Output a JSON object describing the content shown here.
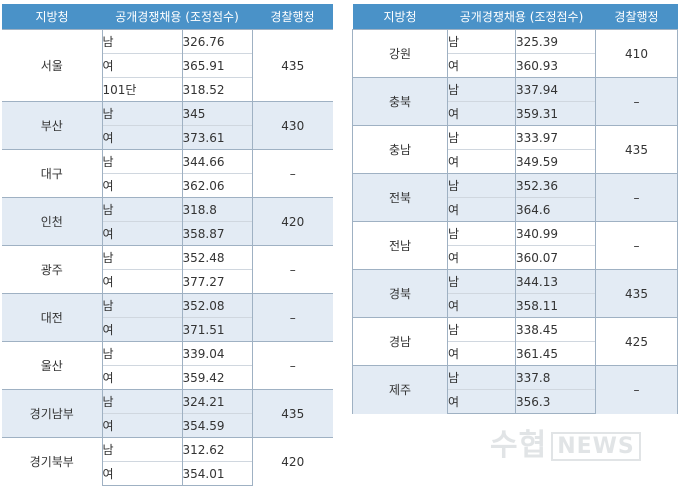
{
  "headers": {
    "region": "지방청",
    "open": "공개경쟁채용 (조정점수)",
    "admin": "경찰행정"
  },
  "left": [
    {
      "region": "서울",
      "admin": "435",
      "shaded": false,
      "rows": [
        {
          "gender": "남",
          "score": "326.76"
        },
        {
          "gender": "여",
          "score": "365.91"
        },
        {
          "gender": "101단",
          "score": "318.52"
        }
      ]
    },
    {
      "region": "부산",
      "admin": "430",
      "shaded": true,
      "rows": [
        {
          "gender": "남",
          "score": "345"
        },
        {
          "gender": "여",
          "score": "373.61"
        }
      ]
    },
    {
      "region": "대구",
      "admin": "–",
      "shaded": false,
      "rows": [
        {
          "gender": "남",
          "score": "344.66"
        },
        {
          "gender": "여",
          "score": "362.06"
        }
      ]
    },
    {
      "region": "인천",
      "admin": "420",
      "shaded": true,
      "rows": [
        {
          "gender": "남",
          "score": "318.8"
        },
        {
          "gender": "여",
          "score": "358.87"
        }
      ]
    },
    {
      "region": "광주",
      "admin": "–",
      "shaded": false,
      "rows": [
        {
          "gender": "남",
          "score": "352.48"
        },
        {
          "gender": "여",
          "score": "377.27"
        }
      ]
    },
    {
      "region": "대전",
      "admin": "–",
      "shaded": true,
      "rows": [
        {
          "gender": "남",
          "score": "352.08"
        },
        {
          "gender": "여",
          "score": "371.51"
        }
      ]
    },
    {
      "region": "울산",
      "admin": "–",
      "shaded": false,
      "rows": [
        {
          "gender": "남",
          "score": "339.04"
        },
        {
          "gender": "여",
          "score": "359.42"
        }
      ]
    },
    {
      "region": "경기남부",
      "admin": "435",
      "shaded": true,
      "rows": [
        {
          "gender": "남",
          "score": "324.21"
        },
        {
          "gender": "여",
          "score": "354.59"
        }
      ]
    },
    {
      "region": "경기북부",
      "admin": "420",
      "shaded": false,
      "rows": [
        {
          "gender": "남",
          "score": "312.62"
        },
        {
          "gender": "여",
          "score": "354.01"
        }
      ]
    }
  ],
  "right": [
    {
      "region": "강원",
      "admin": "410",
      "shaded": false,
      "rows": [
        {
          "gender": "남",
          "score": "325.39"
        },
        {
          "gender": "여",
          "score": "360.93"
        }
      ]
    },
    {
      "region": "충북",
      "admin": "–",
      "shaded": true,
      "rows": [
        {
          "gender": "남",
          "score": "337.94"
        },
        {
          "gender": "여",
          "score": "359.31"
        }
      ]
    },
    {
      "region": "충남",
      "admin": "435",
      "shaded": false,
      "rows": [
        {
          "gender": "남",
          "score": "333.97"
        },
        {
          "gender": "여",
          "score": "349.59"
        }
      ]
    },
    {
      "region": "전북",
      "admin": "–",
      "shaded": true,
      "rows": [
        {
          "gender": "남",
          "score": "352.36"
        },
        {
          "gender": "여",
          "score": "364.6"
        }
      ]
    },
    {
      "region": "전남",
      "admin": "–",
      "shaded": false,
      "rows": [
        {
          "gender": "남",
          "score": "340.99"
        },
        {
          "gender": "여",
          "score": "360.07"
        }
      ]
    },
    {
      "region": "경북",
      "admin": "435",
      "shaded": true,
      "rows": [
        {
          "gender": "남",
          "score": "344.13"
        },
        {
          "gender": "여",
          "score": "358.11"
        }
      ]
    },
    {
      "region": "경남",
      "admin": "425",
      "shaded": false,
      "rows": [
        {
          "gender": "남",
          "score": "338.45"
        },
        {
          "gender": "여",
          "score": "361.45"
        }
      ]
    },
    {
      "region": "제주",
      "admin": "–",
      "shaded": true,
      "rows": [
        {
          "gender": "남",
          "score": "337.8"
        },
        {
          "gender": "여",
          "score": "356.3"
        }
      ]
    }
  ],
  "watermark": {
    "brand": "수협",
    "news": "NEWS"
  }
}
